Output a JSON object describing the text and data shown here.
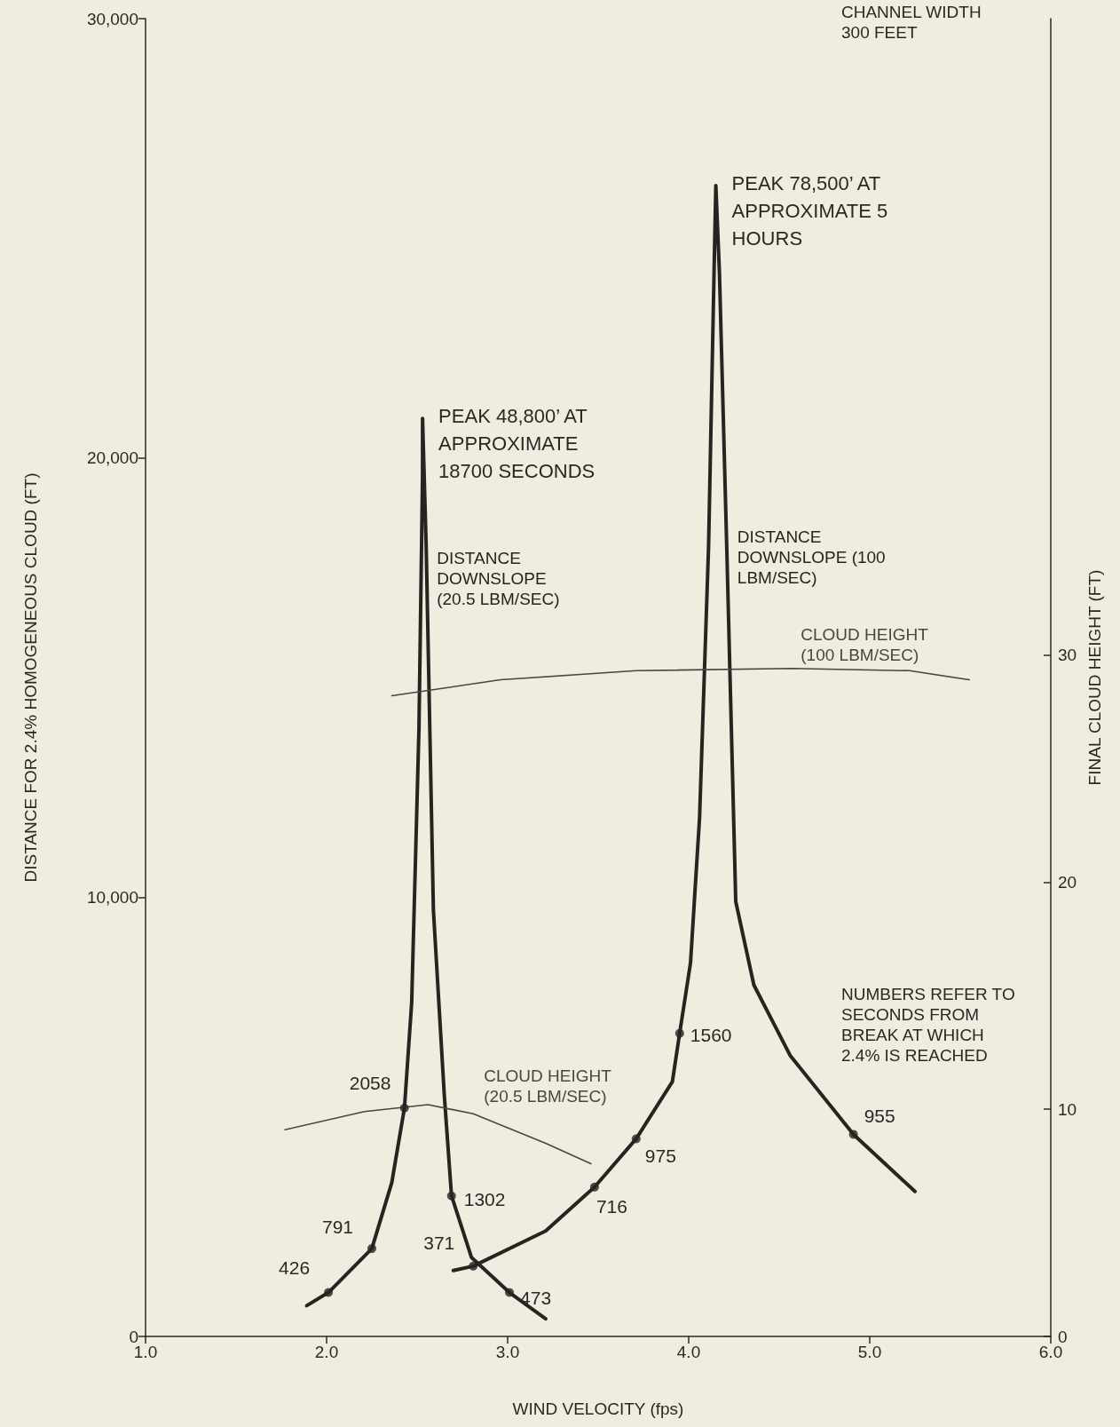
{
  "chart_data": {
    "type": "line",
    "xlabel": "WIND VELOCITY (fps)",
    "ylabel": "DISTANCE FOR 2.4% HOMOGENEOUS CLOUD (FT)",
    "y2label": "FINAL CLOUD HEIGHT (FT)",
    "xlim": [
      1,
      6
    ],
    "xticks": [
      {
        "value": 1,
        "label": "1.0"
      },
      {
        "value": 2,
        "label": "2.0"
      },
      {
        "value": 3,
        "label": "3.0"
      },
      {
        "value": 4,
        "label": "4.0"
      },
      {
        "value": 5,
        "label": "5.0"
      },
      {
        "value": 6,
        "label": "6.0"
      }
    ],
    "ylim": [
      0,
      30000
    ],
    "yticks": [
      0,
      {
        "value": 10000,
        "label": "10,000"
      },
      {
        "value": 20000,
        "label": "20,000"
      },
      {
        "value": 30000,
        "label": "30,000"
      }
    ],
    "y2lim": [
      0,
      58
    ],
    "y2ticks": [
      0,
      10,
      20,
      30
    ],
    "grid": false,
    "legend": false,
    "marker": "none",
    "line_style": "solid",
    "series": [
      {
        "name": "DISTANCE DOWNSLOPE (20.5 LBM/SEC)",
        "color": "#262420",
        "x": [
          1.89,
          2.01,
          2.25,
          2.36,
          2.43,
          2.47,
          2.51,
          2.53,
          2.53,
          2.55,
          2.59,
          2.65,
          2.69,
          2.8,
          3.01,
          3.21
        ],
        "values": [
          700,
          1000,
          2000,
          3500,
          5200,
          7600,
          13800,
          19600,
          20900,
          18000,
          9700,
          5500,
          3200,
          1800,
          1000,
          400
        ]
      },
      {
        "name": "CLOUD HEIGHT (20.5 LBM/SEC)",
        "color": "#4a4640",
        "axis": "y2",
        "x": [
          1.77,
          2.21,
          2.56,
          2.81,
          3.21,
          3.46
        ],
        "values": [
          9.1,
          9.9,
          10.2,
          9.8,
          8.5,
          7.6
        ]
      },
      {
        "name": "DISTANCE DOWNSLOPE (100 LBM/SEC)",
        "color": "#262420",
        "x": [
          2.7,
          2.81,
          3.21,
          3.48,
          3.71,
          3.91,
          3.95,
          4.01,
          4.06,
          4.11,
          4.14,
          4.15,
          4.17,
          4.21,
          4.26,
          4.36,
          4.56,
          4.91,
          5.25
        ],
        "values": [
          1500,
          1600,
          2400,
          3400,
          4500,
          5800,
          6900,
          8500,
          11800,
          18000,
          24200,
          26200,
          24200,
          18000,
          9900,
          8000,
          6400,
          4600,
          3300
        ]
      },
      {
        "name": "CLOUD HEIGHT (100 LBM/SEC)",
        "color": "#4a4640",
        "axis": "y2",
        "x": [
          2.36,
          2.96,
          3.71,
          4.57,
          5.22,
          5.55
        ],
        "values": [
          28.2,
          28.9,
          29.3,
          29.4,
          29.3,
          28.9
        ]
      },
      {
        "type": "scatter",
        "marker": "circle",
        "color": "#262420",
        "x": [
          2.01,
          2.25,
          2.43,
          2.69,
          3.01
        ],
        "values": [
          1000,
          2000,
          5200,
          3200,
          1000
        ]
      },
      {
        "type": "scatter",
        "marker": "circle",
        "color": "#262420",
        "x": [
          2.81,
          3.48,
          3.71,
          3.95,
          4.91
        ],
        "values": [
          1600,
          3400,
          4500,
          6900,
          4600
        ]
      }
    ],
    "annotations": [
      "CHANNEL WIDTH 300 FEET",
      "NUMBERS REFER TO SECONDS FROM BREAK AT WHICH 2.4% IS REACHED",
      {
        "text": "PEAK 48,800’ AT APPROXIMATE 18700 SECONDS",
        "x": 2.53,
        "y": 20900
      },
      {
        "text": "PEAK 78,500’ AT APPROXIMATE 5 HOURS",
        "x": 4.15,
        "y": 26200
      },
      {
        "text": "426",
        "x": 2.01,
        "y": 1000
      },
      {
        "text": "791",
        "x": 2.25,
        "y": 2000
      },
      {
        "text": "2058",
        "x": 2.43,
        "y": 5200
      },
      {
        "text": "1302",
        "x": 2.69,
        "y": 3200
      },
      {
        "text": "473",
        "x": 3.01,
        "y": 1000
      },
      {
        "text": "371",
        "x": 2.81,
        "y": 1600
      },
      {
        "text": "716",
        "x": 3.48,
        "y": 3400
      },
      {
        "text": "975",
        "x": 3.71,
        "y": 4500
      },
      {
        "text": "1560",
        "x": 3.95,
        "y": 6900
      },
      {
        "text": "955",
        "x": 4.91,
        "y": 4600
      }
    ]
  }
}
